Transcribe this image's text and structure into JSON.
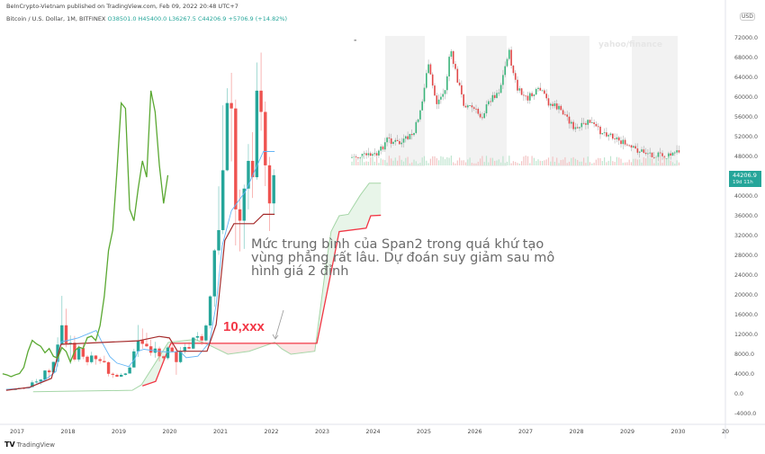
{
  "header": {
    "published": "BeInCrypto-Vietnam published on TradingView.com, Feb 09, 2022 20:48 UTC+7",
    "symbol": "Bitcoin / U.S. Dollar, 1M, BITFINEX",
    "open": "O38501.0",
    "high": "H45400.0",
    "low": "L36267.5",
    "close": "C44206.9",
    "change": "+5706.9 (+14.82%)"
  },
  "price_axis": {
    "currency": "USD",
    "last_price": "44206.9",
    "countdown": "19d 11h"
  },
  "annotation": {
    "text": "Mức trung bình của Span2 trong quá khứ tạo vùng phẳng rất lâu. Dự đoán suy giảm sau mô hình giá 2 đỉnh",
    "level_label": "10,xxx"
  },
  "inset": {
    "watermark": "yahoo/finance"
  },
  "footer": {
    "logo_text": "TradingView"
  },
  "colors": {
    "up": "#26a69a",
    "down": "#ef5350",
    "lagging_span": "#5aa832",
    "conversion_line": "#64b5f6",
    "base_line": "#a52a2a",
    "span_a": "#a5d6a7",
    "span_b": "#f23645",
    "cloud_green": "#e8f5e9",
    "cloud_red": "#fde4e4"
  },
  "chart_data": {
    "type": "candlestick",
    "title": "Bitcoin / U.S. Dollar, 1M, BITFINEX",
    "interval": "1M",
    "start_month": "2017-01",
    "ylim": [
      -4000,
      72000
    ],
    "y_ticks": [
      72000,
      68000,
      64000,
      60000,
      56000,
      52000,
      48000,
      44000,
      40000,
      36000,
      32000,
      28000,
      24000,
      20000,
      16000,
      12000,
      8000,
      4000,
      0,
      -4000
    ],
    "y_tick_labels": [
      "72000.0",
      "68000.0",
      "64000.0",
      "60000.0",
      "56000.0",
      "52000.0",
      "48000.0",
      "",
      "40000.0",
      "36000.0",
      "32000.0",
      "28000.0",
      "24000.0",
      "20000.0",
      "16000.0",
      "12000.0",
      "8000.0",
      "4000.0",
      "0.0",
      "-4000.0"
    ],
    "x_tick_labels": [
      "2017",
      "2018",
      "2019",
      "2020",
      "2021",
      "2022",
      "2023",
      "2024",
      "2025",
      "2026",
      "2027",
      "2028",
      "2029",
      "2030",
      "20"
    ],
    "xlim": [
      2016.8,
      2031.3
    ],
    "grid": false,
    "ohlc": [
      [
        963,
        1150,
        750,
        965
      ],
      [
        965,
        1200,
        920,
        1190
      ],
      [
        1190,
        1350,
        890,
        1080
      ],
      [
        1080,
        1420,
        1060,
        1350
      ],
      [
        1350,
        2700,
        1350,
        2300
      ],
      [
        2300,
        3000,
        2100,
        2480
      ],
      [
        2480,
        2950,
        1850,
        2870
      ],
      [
        2870,
        4800,
        2700,
        4700
      ],
      [
        4700,
        5000,
        2970,
        4340
      ],
      [
        4340,
        6470,
        4120,
        6450
      ],
      [
        6450,
        11400,
        5500,
        9950
      ],
      [
        9950,
        19800,
        9900,
        13850
      ],
      [
        13850,
        17200,
        9400,
        10200
      ],
      [
        10200,
        11800,
        6000,
        10300
      ],
      [
        10300,
        11700,
        6600,
        6930
      ],
      [
        6930,
        9800,
        6500,
        9240
      ],
      [
        9240,
        10000,
        7000,
        7500
      ],
      [
        7500,
        7800,
        5750,
        6400
      ],
      [
        6400,
        8500,
        6100,
        7730
      ],
      [
        7730,
        7800,
        5880,
        7000
      ],
      [
        7000,
        7400,
        6100,
        6630
      ],
      [
        6630,
        7700,
        6200,
        6370
      ],
      [
        6370,
        6570,
        3500,
        4040
      ],
      [
        4040,
        4300,
        3200,
        3830
      ],
      [
        3830,
        4100,
        3350,
        3460
      ],
      [
        3460,
        4200,
        3400,
        3830
      ],
      [
        3830,
        4200,
        3700,
        4100
      ],
      [
        4100,
        5640,
        4080,
        5320
      ],
      [
        5320,
        9100,
        5330,
        8570
      ],
      [
        8570,
        13900,
        7450,
        10800
      ],
      [
        10800,
        13200,
        9100,
        10100
      ],
      [
        10100,
        12330,
        9400,
        9600
      ],
      [
        9600,
        10950,
        7700,
        8300
      ],
      [
        8300,
        10500,
        7300,
        9150
      ],
      [
        9150,
        9550,
        6520,
        7570
      ],
      [
        7570,
        7750,
        6430,
        7200
      ],
      [
        7200,
        9600,
        6860,
        9350
      ],
      [
        9350,
        10500,
        8400,
        8540
      ],
      [
        8540,
        9200,
        3850,
        6410
      ],
      [
        6410,
        9480,
        6150,
        8620
      ],
      [
        8620,
        10080,
        8120,
        9450
      ],
      [
        9450,
        10400,
        8900,
        9140
      ],
      [
        9140,
        11450,
        8970,
        11350
      ],
      [
        11350,
        12480,
        10800,
        11650
      ],
      [
        11650,
        12080,
        9880,
        10780
      ],
      [
        10780,
        14100,
        10400,
        13800
      ],
      [
        13800,
        19900,
        13200,
        19700
      ],
      [
        19700,
        29300,
        17600,
        28990
      ],
      [
        28990,
        41950,
        28100,
        33100
      ],
      [
        33100,
        58350,
        32300,
        45200
      ],
      [
        45200,
        61800,
        45000,
        58800
      ],
      [
        58800,
        64900,
        47000,
        57700
      ],
      [
        57700,
        59500,
        30000,
        37300
      ],
      [
        37300,
        41300,
        28800,
        35000
      ],
      [
        35000,
        42300,
        29300,
        41500
      ],
      [
        41500,
        50500,
        37300,
        47100
      ],
      [
        47100,
        52900,
        39600,
        43800
      ],
      [
        43800,
        67000,
        43300,
        61300
      ],
      [
        61300,
        69000,
        53200,
        57000
      ],
      [
        57000,
        59100,
        42000,
        46200
      ],
      [
        46200,
        47900,
        32900,
        38500
      ],
      [
        38501,
        45400,
        36267.5,
        44206.9
      ]
    ],
    "lagging_span_displacement": 25,
    "conversion_line": [
      [
        2016.82,
        900
      ],
      [
        2017.28,
        1200
      ],
      [
        2017.58,
        2800
      ],
      [
        2017.8,
        4500
      ],
      [
        2017.9,
        10500
      ],
      [
        2018.12,
        11000
      ],
      [
        2018.24,
        11300
      ],
      [
        2018.59,
        12800
      ],
      [
        2018.7,
        10500
      ],
      [
        2018.86,
        7500
      ],
      [
        2019.0,
        6200
      ],
      [
        2019.23,
        5500
      ],
      [
        2019.35,
        7000
      ],
      [
        2019.41,
        8600
      ],
      [
        2019.53,
        9000
      ],
      [
        2019.8,
        8600
      ],
      [
        2020.06,
        8400
      ],
      [
        2020.24,
        8600
      ],
      [
        2020.36,
        7300
      ],
      [
        2020.59,
        7600
      ],
      [
        2020.82,
        10400
      ],
      [
        2020.95,
        18000
      ],
      [
        2021.07,
        30000
      ],
      [
        2021.25,
        37000
      ],
      [
        2021.53,
        41000
      ],
      [
        2021.88,
        49000
      ],
      [
        2022.1,
        49000
      ]
    ],
    "base_line": [
      [
        2016.82,
        700
      ],
      [
        2017.28,
        1300
      ],
      [
        2017.71,
        3100
      ],
      [
        2017.9,
        10000
      ],
      [
        2019.41,
        10700
      ],
      [
        2019.83,
        11600
      ],
      [
        2020.03,
        11300
      ],
      [
        2020.19,
        8600
      ],
      [
        2020.77,
        8600
      ],
      [
        2020.95,
        14000
      ],
      [
        2021.12,
        31000
      ],
      [
        2021.3,
        34400
      ],
      [
        2021.69,
        34400
      ],
      [
        2021.88,
        36300
      ],
      [
        2022.1,
        36300
      ]
    ],
    "span_a": [
      [
        2017.35,
        400
      ],
      [
        2019.3,
        700
      ],
      [
        2019.48,
        1800
      ],
      [
        2020.01,
        10400
      ],
      [
        2020.54,
        11000
      ],
      [
        2020.82,
        9800
      ],
      [
        2021.18,
        8000
      ],
      [
        2021.6,
        8600
      ],
      [
        2022.1,
        10400
      ],
      [
        2022.24,
        9100
      ],
      [
        2022.42,
        8000
      ],
      [
        2022.89,
        8600
      ],
      [
        2023.12,
        26800
      ],
      [
        2023.21,
        32800
      ],
      [
        2023.37,
        36000
      ],
      [
        2023.55,
        36300
      ],
      [
        2023.78,
        40100
      ],
      [
        2023.96,
        42600
      ],
      [
        2024.19,
        42600
      ]
    ],
    "span_b": [
      [
        2019.5,
        1600
      ],
      [
        2019.76,
        2500
      ],
      [
        2019.97,
        8000
      ],
      [
        2020.06,
        10200
      ],
      [
        2022.93,
        10200
      ],
      [
        2023.37,
        32800
      ],
      [
        2023.9,
        33500
      ],
      [
        2023.99,
        36000
      ],
      [
        2024.19,
        36100
      ]
    ]
  }
}
